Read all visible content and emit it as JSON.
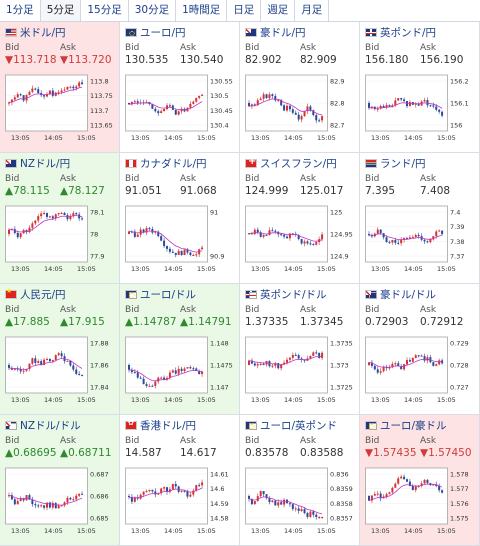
{
  "tabs": [
    "1分足",
    "5分足",
    "15分足",
    "30分足",
    "1時間足",
    "日足",
    "週足",
    "月足"
  ],
  "active_tab": 1,
  "bid_label": "Bid",
  "ask_label": "Ask",
  "time_labels": [
    "13:05",
    "14:05",
    "15:05"
  ],
  "colors": {
    "up_bar": "#d43333",
    "down_bar": "#2a4b9a",
    "ma_line": "#c035c8"
  },
  "cells": [
    {
      "name": "米ドル/円",
      "flag": "us",
      "pair": false,
      "dir": "down",
      "bid": "▼113.718",
      "ask": "▼113.720",
      "yticks": [
        "113.8",
        "113.75",
        "113.7",
        "113.65"
      ],
      "seed": 1
    },
    {
      "name": "ユーロ/円",
      "flag": "eu",
      "pair": false,
      "dir": "neutral",
      "bid": "130.535",
      "ask": "130.540",
      "yticks": [
        "130.55",
        "130.5",
        "130.45",
        "130.4"
      ],
      "seed": 2
    },
    {
      "name": "豪ドル/円",
      "flag": "au",
      "pair": false,
      "dir": "neutral",
      "bid": "82.902",
      "ask": "82.909",
      "yticks": [
        "82.9",
        "82.8",
        "82.7"
      ],
      "seed": 3
    },
    {
      "name": "英ポンド/円",
      "flag": "gb",
      "pair": false,
      "dir": "neutral",
      "bid": "156.180",
      "ask": "156.190",
      "yticks": [
        "156.2",
        "156.1",
        "156"
      ],
      "seed": 4
    },
    {
      "name": "NZドル/円",
      "flag": "nz",
      "pair": false,
      "dir": "up",
      "bid": "▲78.115",
      "ask": "▲78.127",
      "yticks": [
        "78.1",
        "78",
        "77.9"
      ],
      "seed": 5
    },
    {
      "name": "カナダドル/円",
      "flag": "ca",
      "pair": false,
      "dir": "neutral",
      "bid": "91.051",
      "ask": "91.068",
      "yticks": [
        "91",
        "90.9"
      ],
      "seed": 6
    },
    {
      "name": "スイスフラン/円",
      "flag": "ch",
      "pair": false,
      "dir": "neutral",
      "bid": "124.999",
      "ask": "125.017",
      "yticks": [
        "125",
        "124.95",
        "124.9"
      ],
      "seed": 7
    },
    {
      "name": "ランド/円",
      "flag": "za",
      "pair": false,
      "dir": "neutral",
      "bid": "7.395",
      "ask": "7.408",
      "yticks": [
        "7.4",
        "7.39",
        "7.38",
        "7.37"
      ],
      "seed": 8
    },
    {
      "name": "人民元/円",
      "flag": "cn",
      "pair": false,
      "dir": "up",
      "bid": "▲17.885",
      "ask": "▲17.915",
      "yticks": [
        "17.88",
        "17.86",
        "17.84"
      ],
      "seed": 9
    },
    {
      "name": "ユーロ/ドル",
      "flag": "eu",
      "pair": true,
      "dir": "up",
      "bid": "▲1.14787",
      "ask": "▲1.14791",
      "yticks": [
        "1.148",
        "1.1475",
        "1.147"
      ],
      "seed": 10
    },
    {
      "name": "英ポンド/ドル",
      "flag": "gb",
      "pair": true,
      "dir": "neutral",
      "bid": "1.37335",
      "ask": "1.37345",
      "yticks": [
        "1.3735",
        "1.373",
        "1.3725"
      ],
      "seed": 11
    },
    {
      "name": "豪ドル/ドル",
      "flag": "au",
      "pair": true,
      "dir": "neutral",
      "bid": "0.72903",
      "ask": "0.72912",
      "yticks": [
        "0.729",
        "0.728",
        "0.727"
      ],
      "seed": 12
    },
    {
      "name": "NZドル/ドル",
      "flag": "nz",
      "pair": true,
      "dir": "up",
      "bid": "▲0.68695",
      "ask": "▲0.68711",
      "yticks": [
        "0.687",
        "0.686",
        "0.685"
      ],
      "seed": 13
    },
    {
      "name": "香港ドル/円",
      "flag": "hk",
      "pair": false,
      "dir": "neutral",
      "bid": "14.587",
      "ask": "14.617",
      "yticks": [
        "14.61",
        "14.6",
        "14.59",
        "14.58"
      ],
      "seed": 14
    },
    {
      "name": "ユーロ/英ポンド",
      "flag": "eu",
      "pair": true,
      "dir": "neutral",
      "bid": "0.83578",
      "ask": "0.83588",
      "yticks": [
        "0.836",
        "0.8359",
        "0.8358",
        "0.8357"
      ],
      "seed": 15
    },
    {
      "name": "ユーロ/豪ドル",
      "flag": "eu",
      "pair": true,
      "dir": "down",
      "bid": "▼1.57435",
      "ask": "▼1.57450",
      "yticks": [
        "1.578",
        "1.577",
        "1.576",
        "1.575"
      ],
      "seed": 16
    }
  ]
}
